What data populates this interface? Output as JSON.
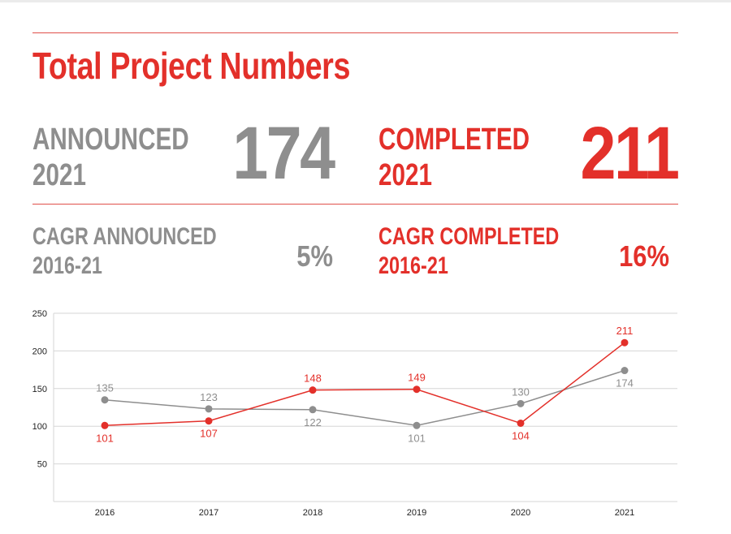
{
  "title": "Total Project Numbers",
  "announced": {
    "label_line1": "ANNOUNCED",
    "label_line2": "2021",
    "value": "174"
  },
  "completed": {
    "label_line1": "COMPLETED",
    "label_line2": "2021",
    "value": "211"
  },
  "cagr_announced": {
    "label_line1": "CAGR ANNOUNCED",
    "label_line2": "2016-21",
    "value": "5%"
  },
  "cagr_completed": {
    "label_line1": "CAGR COMPLETED",
    "label_line2": "2016-21",
    "value": "16%"
  },
  "colors": {
    "accent": "#e3302a",
    "gray": "#8e8e8e"
  },
  "chart_data": {
    "type": "line",
    "categories": [
      "2016",
      "2017",
      "2018",
      "2019",
      "2020",
      "2021"
    ],
    "ylim": [
      0,
      250
    ],
    "yticks": [
      50,
      100,
      150,
      200,
      250
    ],
    "grid": true,
    "series": [
      {
        "values": [
          135,
          123,
          122,
          101,
          130,
          174
        ],
        "labels": [
          "135",
          "123",
          "122",
          "101",
          "130",
          "174"
        ],
        "label_pos": [
          "above",
          "above",
          "below",
          "below",
          "above",
          "below"
        ],
        "color": "#8e8e8e"
      },
      {
        "values": [
          101,
          107,
          148,
          149,
          104,
          211
        ],
        "labels": [
          "101",
          "107",
          "148",
          "149",
          "104",
          "211"
        ],
        "label_pos": [
          "below",
          "below",
          "above",
          "above",
          "below",
          "above"
        ],
        "color": "#e3302a"
      }
    ]
  }
}
